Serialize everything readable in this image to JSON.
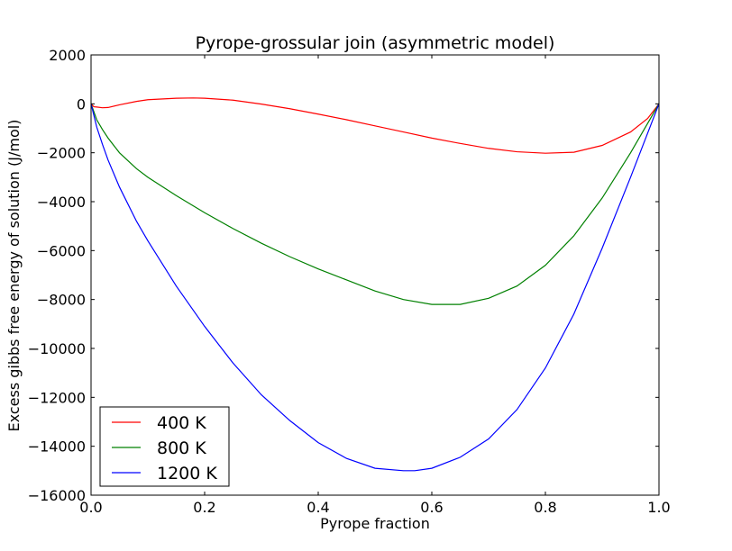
{
  "chart_data": {
    "type": "line",
    "title": "Pyrope-grossular join (asymmetric model)",
    "xlabel": "Pyrope fraction",
    "ylabel": "Excess gibbs free energy of solution (J/mol)",
    "xlim": [
      0.0,
      1.0
    ],
    "ylim": [
      -16000,
      2000
    ],
    "xticks": [
      "0.0",
      "0.2",
      "0.4",
      "0.6",
      "0.8",
      "1.0"
    ],
    "yticks": [
      "2000",
      "0",
      "−2000",
      "−4000",
      "−6000",
      "−8000",
      "−10000",
      "−12000",
      "−14000",
      "−16000"
    ],
    "legend_position": "lower-left",
    "grid": false,
    "series": [
      {
        "name": "400 K",
        "color": "#ff0000",
        "x": [
          0.0,
          0.005,
          0.01,
          0.02,
          0.03,
          0.05,
          0.08,
          0.1,
          0.15,
          0.18,
          0.2,
          0.25,
          0.3,
          0.35,
          0.4,
          0.45,
          0.5,
          0.55,
          0.6,
          0.65,
          0.7,
          0.75,
          0.8,
          0.85,
          0.9,
          0.95,
          0.98,
          1.0
        ],
        "y": [
          0,
          -120,
          -130,
          -160,
          -150,
          -40,
          100,
          170,
          230,
          240,
          230,
          150,
          -10,
          -200,
          -420,
          -650,
          -900,
          -1150,
          -1400,
          -1620,
          -1820,
          -1960,
          -2020,
          -1980,
          -1700,
          -1150,
          -600,
          0
        ]
      },
      {
        "name": "800 K",
        "color": "#008000",
        "x": [
          0.0,
          0.01,
          0.02,
          0.03,
          0.05,
          0.08,
          0.1,
          0.15,
          0.2,
          0.25,
          0.3,
          0.35,
          0.4,
          0.45,
          0.5,
          0.55,
          0.6,
          0.65,
          0.7,
          0.75,
          0.8,
          0.85,
          0.9,
          0.95,
          0.98,
          1.0
        ],
        "y": [
          0,
          -650,
          -1050,
          -1400,
          -2000,
          -2650,
          -3000,
          -3750,
          -4450,
          -5100,
          -5700,
          -6250,
          -6750,
          -7200,
          -7650,
          -8000,
          -8200,
          -8200,
          -7950,
          -7450,
          -6600,
          -5400,
          -3850,
          -2000,
          -800,
          0
        ]
      },
      {
        "name": "1200 K",
        "color": "#0000ff",
        "x": [
          0.0,
          0.01,
          0.02,
          0.03,
          0.05,
          0.08,
          0.1,
          0.15,
          0.2,
          0.25,
          0.3,
          0.35,
          0.4,
          0.45,
          0.5,
          0.55,
          0.57,
          0.6,
          0.65,
          0.7,
          0.75,
          0.8,
          0.85,
          0.9,
          0.95,
          0.98,
          1.0
        ],
        "y": [
          0,
          -950,
          -1650,
          -2300,
          -3400,
          -4800,
          -5600,
          -7450,
          -9100,
          -10600,
          -11900,
          -12950,
          -13850,
          -14500,
          -14900,
          -15000,
          -15000,
          -14900,
          -14450,
          -13700,
          -12500,
          -10800,
          -8600,
          -5900,
          -3000,
          -1200,
          0
        ]
      }
    ]
  }
}
